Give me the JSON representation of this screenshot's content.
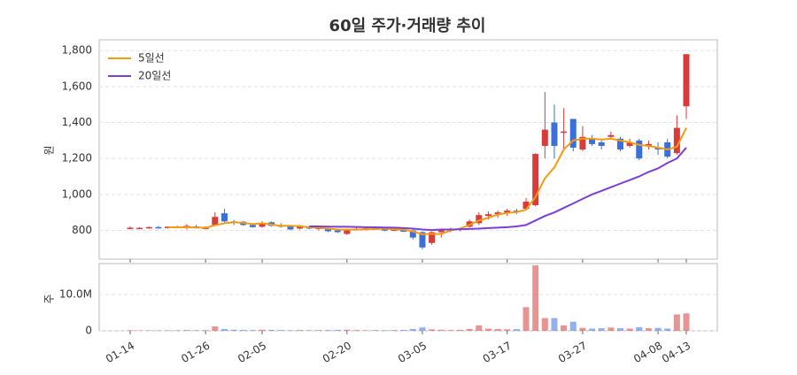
{
  "chart_data": [
    {
      "type": "candlestick",
      "title": "60일 주가·거래량 추이",
      "ylabel": "원",
      "categories": [
        "01-14",
        null,
        null,
        null,
        null,
        null,
        null,
        null,
        "01-26",
        null,
        null,
        null,
        null,
        null,
        "02-05",
        null,
        null,
        null,
        null,
        null,
        null,
        null,
        null,
        "02-20",
        null,
        null,
        null,
        null,
        null,
        null,
        null,
        "03-05",
        null,
        null,
        null,
        null,
        null,
        null,
        null,
        null,
        "03-17",
        null,
        null,
        null,
        null,
        null,
        null,
        null,
        "03-27",
        null,
        null,
        null,
        null,
        null,
        null,
        null,
        "04-08",
        null,
        null,
        "04-13"
      ],
      "open": [
        810,
        812,
        815,
        818,
        816,
        820,
        815,
        822,
        812,
        830,
        895,
        850,
        848,
        830,
        820,
        845,
        830,
        822,
        810,
        820,
        812,
        810,
        800,
        780,
        805,
        808,
        810,
        806,
        802,
        800,
        800,
        790,
        730,
        790,
        800,
        805,
        820,
        840,
        880,
        890,
        895,
        910,
        920,
        940,
        1270,
        1400,
        1350,
        1420,
        1250,
        1310,
        1290,
        1320,
        1310,
        1270,
        1300,
        1270,
        1260,
        1290,
        1230,
        1490
      ],
      "high": [
        822,
        818,
        822,
        825,
        822,
        826,
        835,
        830,
        822,
        900,
        920,
        858,
        852,
        840,
        850,
        850,
        840,
        830,
        830,
        825,
        822,
        815,
        810,
        810,
        815,
        820,
        815,
        812,
        810,
        808,
        805,
        795,
        795,
        810,
        815,
        815,
        860,
        900,
        905,
        910,
        920,
        920,
        980,
        1230,
        1570,
        1500,
        1480,
        1420,
        1380,
        1330,
        1300,
        1350,
        1320,
        1310,
        1310,
        1300,
        1290,
        1310,
        1440,
        1780
      ],
      "low": [
        805,
        808,
        810,
        812,
        810,
        812,
        805,
        810,
        805,
        825,
        845,
        830,
        825,
        815,
        815,
        820,
        815,
        800,
        805,
        805,
        800,
        790,
        785,
        775,
        800,
        800,
        802,
        795,
        795,
        790,
        750,
        695,
        720,
        760,
        790,
        795,
        815,
        830,
        860,
        870,
        880,
        890,
        910,
        935,
        1200,
        1200,
        1250,
        1240,
        1240,
        1270,
        1250,
        1310,
        1240,
        1260,
        1190,
        1250,
        1220,
        1200,
        1220,
        1420
      ],
      "close": [
        815,
        814,
        818,
        816,
        820,
        814,
        825,
        812,
        815,
        875,
        850,
        845,
        830,
        818,
        840,
        825,
        820,
        805,
        825,
        810,
        815,
        795,
        790,
        805,
        808,
        812,
        806,
        800,
        805,
        795,
        760,
        705,
        790,
        805,
        808,
        810,
        850,
        885,
        890,
        900,
        910,
        900,
        960,
        1225,
        1360,
        1270,
        1350,
        1260,
        1320,
        1280,
        1270,
        1330,
        1250,
        1290,
        1200,
        1280,
        1250,
        1210,
        1370,
        1780
      ],
      "up_color": "#d93a3a",
      "down_color": "#3b6fdc",
      "series": [
        {
          "name": "5일선",
          "color": "#f39c12",
          "values": [
            null,
            null,
            null,
            null,
            818,
            817,
            818,
            816,
            815,
            828,
            840,
            845,
            842,
            835,
            840,
            832,
            825,
            826,
            823,
            817,
            815,
            810,
            805,
            804,
            804,
            806,
            808,
            810,
            806,
            804,
            794,
            778,
            780,
            780,
            800,
            810,
            830,
            855,
            870,
            888,
            897,
            902,
            915,
            985,
            1090,
            1150,
            1250,
            1300,
            1310,
            1310,
            1305,
            1310,
            1300,
            1290,
            1275,
            1270,
            1260,
            1250,
            1265,
            1370
          ]
        },
        {
          "name": "20일선",
          "color": "#7b3fd8",
          "values": [
            null,
            null,
            null,
            null,
            null,
            null,
            null,
            null,
            null,
            null,
            null,
            null,
            null,
            null,
            null,
            null,
            null,
            null,
            null,
            822,
            822,
            821,
            820,
            820,
            819,
            818,
            817,
            816,
            815,
            813,
            810,
            805,
            802,
            805,
            805,
            806,
            808,
            810,
            813,
            815,
            818,
            822,
            830,
            855,
            880,
            900,
            925,
            950,
            975,
            1000,
            1020,
            1040,
            1060,
            1080,
            1100,
            1125,
            1145,
            1175,
            1200,
            1260
          ]
        }
      ],
      "ylim": [
        640,
        1860
      ],
      "yticks": [
        800,
        {
          "value": 1000,
          "label": "1,000"
        },
        {
          "value": 1200,
          "label": "1,200"
        },
        {
          "value": 1400,
          "label": "1,400"
        },
        {
          "value": 1600,
          "label": "1,600"
        },
        {
          "value": 1800,
          "label": "1,800"
        }
      ],
      "grid": true,
      "legend": "upper left"
    },
    {
      "type": "bar",
      "ylabel": "주",
      "values": [
        150000,
        100000,
        120000,
        100000,
        130000,
        150000,
        200000,
        150000,
        180000,
        1200000,
        500000,
        300000,
        250000,
        200000,
        300000,
        250000,
        200000,
        150000,
        200000,
        150000,
        180000,
        200000,
        250000,
        300000,
        200000,
        150000,
        180000,
        150000,
        200000,
        250000,
        500000,
        900000,
        400000,
        300000,
        200000,
        250000,
        500000,
        1500000,
        600000,
        500000,
        400000,
        450000,
        6500000,
        18000000,
        3500000,
        3500000,
        1500000,
        2500000,
        800000,
        600000,
        700000,
        900000,
        700000,
        600000,
        1000000,
        700000,
        800000,
        600000,
        4500000,
        4800000
      ],
      "ylim": [
        0,
        18500000
      ],
      "yticks": [
        0,
        {
          "value": 10000000,
          "label": "10.0M"
        }
      ]
    }
  ]
}
